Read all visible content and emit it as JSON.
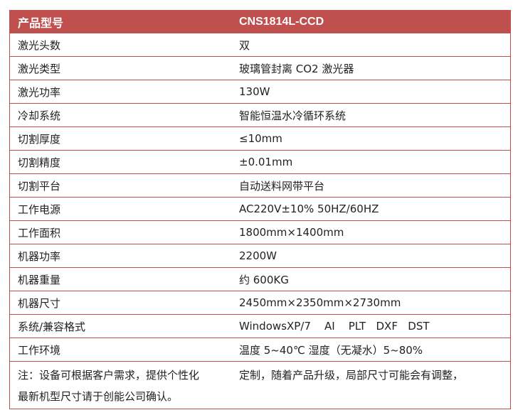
{
  "header": {
    "label": "产品型号",
    "value": "CNS1814L-CCD"
  },
  "rows": [
    {
      "label": "激光头数",
      "value": "双"
    },
    {
      "label": "激光类型",
      "value": "玻璃管封离 CO2 激光器"
    },
    {
      "label": "激光功率",
      "value": "130W"
    },
    {
      "label": "冷却系统",
      "value": "智能恒温水冷循环系统"
    },
    {
      "label": "切割厚度",
      "value": "≤10mm"
    },
    {
      "label": "切割精度",
      "value": "±0.01mm"
    },
    {
      "label": "切割平台",
      "value": "自动送料网带平台"
    },
    {
      "label": "工作电源",
      "value": "AC220V±10% 50HZ/60HZ"
    },
    {
      "label": "工作面积",
      "value": "1800mm×1400mm"
    },
    {
      "label": "机器功率",
      "value": "2200W"
    },
    {
      "label": "机器重量",
      "value": "约 600KG"
    },
    {
      "label": "机器尺寸",
      "value": "2450mm×2350mm×2730mm"
    },
    {
      "label": "系统/兼容格式",
      "value": "WindowsXP/7    AI    PLT   DXF   DST"
    },
    {
      "label": "工作环境",
      "value": "温度 5~40℃ 湿度（无凝水）5~80%"
    }
  ],
  "note": {
    "line1_left": "注：设备可根据客户需求，提供个性化",
    "line1_right": "定制，随着产品升级，局部尺寸可能会有调整，",
    "line2": "最新机型尺寸请于创能公司确认。"
  },
  "colors": {
    "header_bg": "#c0504d",
    "border": "#c0504d"
  }
}
